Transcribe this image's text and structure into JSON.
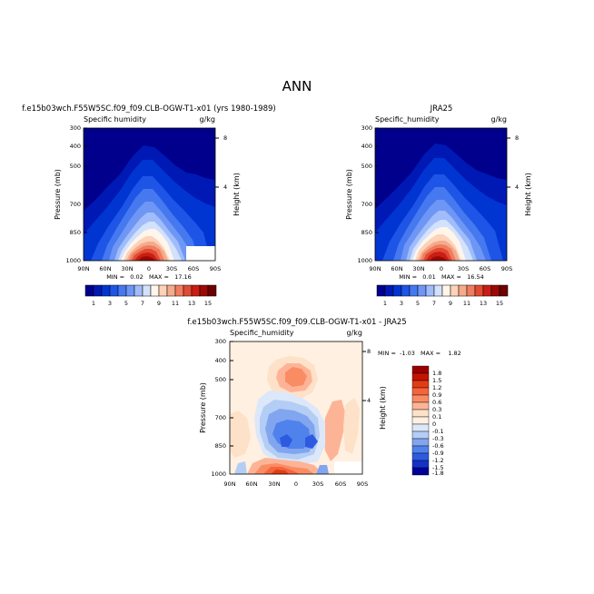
{
  "page_title": "ANN",
  "chart_data": [
    {
      "type": "heatmap",
      "title": "f.e15b03wch.F55W5SC.f09_f09.CLB-OGW-T1-x01 (yrs 1980-1989)",
      "variable": "Specific humidity",
      "units": "g/kg",
      "ylabel": "Pressure (mb)",
      "ylabel_right": "Height (km)",
      "x_ticks": [
        "90N",
        "60N",
        "30N",
        "0",
        "30S",
        "60S",
        "90S"
      ],
      "y_ticks": [
        "300",
        "400",
        "500",
        "700",
        "850",
        "1000"
      ],
      "y_ticks_right": [
        "8",
        "4"
      ],
      "ylim": [
        1000,
        300
      ],
      "stats": "MIN =   0.02   MAX =   17.16",
      "colorbar_labels": [
        "1",
        "3",
        "5",
        "7",
        "9",
        "11",
        "13",
        "15"
      ],
      "peak_value": 17.16,
      "peak_latitude": 5,
      "surface_missing": "white box near 50S-60S below ~800 mb"
    },
    {
      "type": "heatmap",
      "title": "JRA25",
      "variable": "Specific_humidity",
      "units": "g/kg",
      "ylabel": "Pressure (mb)",
      "ylabel_right": "Height (km)",
      "x_ticks": [
        "90N",
        "60N",
        "30N",
        "0",
        "30S",
        "60S",
        "90S"
      ],
      "y_ticks": [
        "300",
        "400",
        "500",
        "700",
        "850",
        "1000"
      ],
      "y_ticks_right": [
        "8",
        "4"
      ],
      "ylim": [
        1000,
        300
      ],
      "stats": "MIN =   0.01   MAX =   16.54",
      "colorbar_labels": [
        "1",
        "3",
        "5",
        "7",
        "9",
        "11",
        "13",
        "15"
      ],
      "peak_value": 16.54,
      "peak_latitude": 5
    },
    {
      "type": "heatmap",
      "title": "f.e15b03wch.F55W5SC.f09_f09.CLB-OGW-T1-x01 - JRA25",
      "variable": "Specific_humidity",
      "units": "g/kg",
      "ylabel": "Pressure (mb)",
      "ylabel_right": "Height (km)",
      "x_ticks": [
        "90N",
        "60N",
        "30N",
        "0",
        "30S",
        "60S",
        "90S"
      ],
      "y_ticks": [
        "300",
        "400",
        "500",
        "700",
        "850",
        "1000"
      ],
      "y_ticks_right": [
        "8",
        "4"
      ],
      "ylim": [
        1000,
        300
      ],
      "stats": "MIN =  -1.03   MAX =    1.82",
      "colorbar_labels": [
        "1.8",
        "1.5",
        "1.2",
        "0.9",
        "0.6",
        "0.3",
        "0.1",
        "0",
        "-0.1",
        "-0.3",
        "-0.6",
        "-0.9",
        "-1.2",
        "-1.5",
        "-1.8"
      ]
    }
  ],
  "colors": {
    "seq": [
      "#00008c",
      "#0019b4",
      "#0035d2",
      "#1e55e6",
      "#4678f0",
      "#6e96f5",
      "#a0bcfa",
      "#d2e1fc",
      "#fff5eb",
      "#fcd2b9",
      "#f5aa8c",
      "#f07d5f",
      "#e14b32",
      "#c81e14",
      "#9b0a05",
      "#6e0000"
    ],
    "div": [
      "#9b0000",
      "#c31400",
      "#e13c14",
      "#f5643c",
      "#fa8c64",
      "#fdb496",
      "#fde1c8",
      "#fff0e1",
      "#dce8fa",
      "#b4cdf5",
      "#82a5f0",
      "#5082eb",
      "#2d5ae1",
      "#1432c8",
      "#000096"
    ]
  }
}
